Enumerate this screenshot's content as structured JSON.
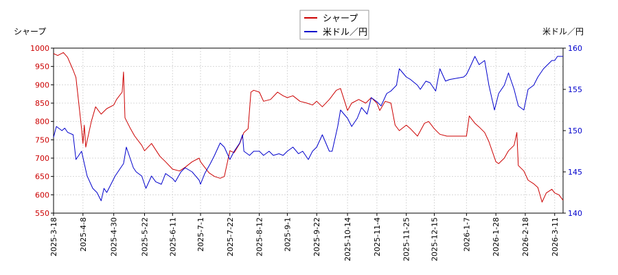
{
  "chart_data": {
    "type": "line",
    "title": "",
    "legend": {
      "placement": "top-center",
      "entries": [
        {
          "label": "シャープ",
          "color": "#cc0000"
        },
        {
          "label": "米ドル／円",
          "color": "#0000cc"
        }
      ]
    },
    "y_left": {
      "label": "シャープ",
      "range": [
        550,
        1000
      ],
      "ticks": [
        550,
        600,
        650,
        700,
        750,
        800,
        850,
        900,
        950,
        1000
      ],
      "color": "#cc0000"
    },
    "y_right": {
      "label": "米ドル／円",
      "range": [
        140,
        160
      ],
      "ticks": [
        140,
        145,
        150,
        155,
        160
      ],
      "color": "#0000cc"
    },
    "x_axis": {
      "range": [
        "2025-03-18",
        "2026-03-17"
      ],
      "ticks": [
        "2025-3-18",
        "2025-4-8",
        "2025-4-30",
        "2025-5-22",
        "2025-6-11",
        "2025-7-1",
        "2025-7-22",
        "2025-8-12",
        "2025-9-1",
        "2025-9-22",
        "2025-10-14",
        "2025-11-4",
        "2025-11-25",
        "2025-12-15",
        "2026-1-7",
        "2026-1-28",
        "2026-2-18",
        "2026-3-11"
      ]
    },
    "grid": true,
    "series": [
      {
        "name": "シャープ",
        "axis": "left",
        "color": "#cc0000",
        "points": [
          [
            "2025-03-18",
            985
          ],
          [
            "2025-03-21",
            980
          ],
          [
            "2025-03-25",
            988
          ],
          [
            "2025-03-28",
            975
          ],
          [
            "2025-04-01",
            940
          ],
          [
            "2025-04-03",
            920
          ],
          [
            "2025-04-07",
            780
          ],
          [
            "2025-04-08",
            740
          ],
          [
            "2025-04-09",
            790
          ],
          [
            "2025-04-10",
            730
          ],
          [
            "2025-04-14",
            800
          ],
          [
            "2025-04-17",
            840
          ],
          [
            "2025-04-21",
            820
          ],
          [
            "2025-04-25",
            835
          ],
          [
            "2025-04-30",
            845
          ],
          [
            "2025-05-02",
            860
          ],
          [
            "2025-05-06",
            880
          ],
          [
            "2025-05-07",
            935
          ],
          [
            "2025-05-08",
            810
          ],
          [
            "2025-05-12",
            780
          ],
          [
            "2025-05-15",
            760
          ],
          [
            "2025-05-20",
            735
          ],
          [
            "2025-05-22",
            720
          ],
          [
            "2025-05-27",
            740
          ],
          [
            "2025-06-02",
            705
          ],
          [
            "2025-06-06",
            690
          ],
          [
            "2025-06-11",
            670
          ],
          [
            "2025-06-16",
            665
          ],
          [
            "2025-06-20",
            675
          ],
          [
            "2025-06-25",
            690
          ],
          [
            "2025-06-30",
            700
          ],
          [
            "2025-07-01",
            690
          ],
          [
            "2025-07-07",
            660
          ],
          [
            "2025-07-11",
            650
          ],
          [
            "2025-07-15",
            645
          ],
          [
            "2025-07-18",
            650
          ],
          [
            "2025-07-22",
            720
          ],
          [
            "2025-07-25",
            715
          ],
          [
            "2025-07-29",
            740
          ],
          [
            "2025-08-01",
            770
          ],
          [
            "2025-08-04",
            780
          ],
          [
            "2025-08-06",
            880
          ],
          [
            "2025-08-08",
            885
          ],
          [
            "2025-08-12",
            880
          ],
          [
            "2025-08-15",
            855
          ],
          [
            "2025-08-20",
            860
          ],
          [
            "2025-08-25",
            880
          ],
          [
            "2025-08-29",
            870
          ],
          [
            "2025-09-01",
            865
          ],
          [
            "2025-09-05",
            870
          ],
          [
            "2025-09-10",
            855
          ],
          [
            "2025-09-15",
            850
          ],
          [
            "2025-09-19",
            845
          ],
          [
            "2025-09-22",
            855
          ],
          [
            "2025-09-26",
            840
          ],
          [
            "2025-10-01",
            860
          ],
          [
            "2025-10-06",
            885
          ],
          [
            "2025-10-09",
            890
          ],
          [
            "2025-10-14",
            830
          ],
          [
            "2025-10-17",
            850
          ],
          [
            "2025-10-22",
            860
          ],
          [
            "2025-10-27",
            850
          ],
          [
            "2025-10-31",
            865
          ],
          [
            "2025-11-04",
            850
          ],
          [
            "2025-11-06",
            830
          ],
          [
            "2025-11-10",
            855
          ],
          [
            "2025-11-14",
            850
          ],
          [
            "2025-11-17",
            790
          ],
          [
            "2025-11-20",
            775
          ],
          [
            "2025-11-25",
            790
          ],
          [
            "2025-11-28",
            780
          ],
          [
            "2025-12-03",
            760
          ],
          [
            "2025-12-08",
            795
          ],
          [
            "2025-12-11",
            800
          ],
          [
            "2025-12-15",
            780
          ],
          [
            "2025-12-19",
            765
          ],
          [
            "2025-12-24",
            760
          ],
          [
            "2026-01-05",
            760
          ],
          [
            "2026-01-07",
            760
          ],
          [
            "2026-01-09",
            815
          ],
          [
            "2026-01-13",
            795
          ],
          [
            "2026-01-16",
            785
          ],
          [
            "2026-01-20",
            770
          ],
          [
            "2026-01-23",
            745
          ],
          [
            "2026-01-28",
            690
          ],
          [
            "2026-01-30",
            685
          ],
          [
            "2026-02-03",
            700
          ],
          [
            "2026-02-06",
            720
          ],
          [
            "2026-02-10",
            735
          ],
          [
            "2026-02-12",
            770
          ],
          [
            "2026-02-13",
            680
          ],
          [
            "2026-02-17",
            665
          ],
          [
            "2026-02-20",
            640
          ],
          [
            "2026-02-24",
            630
          ],
          [
            "2026-02-27",
            620
          ],
          [
            "2026-03-02",
            580
          ],
          [
            "2026-03-05",
            605
          ],
          [
            "2026-03-09",
            615
          ],
          [
            "2026-03-11",
            605
          ],
          [
            "2026-03-14",
            600
          ],
          [
            "2026-03-17",
            585
          ]
        ]
      },
      {
        "name": "米ドル／円",
        "axis": "right",
        "color": "#0000cc",
        "points": [
          [
            "2025-03-18",
            149.2
          ],
          [
            "2025-03-20",
            150.5
          ],
          [
            "2025-03-24",
            150.0
          ],
          [
            "2025-03-26",
            150.3
          ],
          [
            "2025-03-28",
            149.8
          ],
          [
            "2025-04-01",
            149.5
          ],
          [
            "2025-04-03",
            146.5
          ],
          [
            "2025-04-07",
            147.5
          ],
          [
            "2025-04-09",
            146.0
          ],
          [
            "2025-04-11",
            144.5
          ],
          [
            "2025-04-15",
            143.0
          ],
          [
            "2025-04-18",
            142.5
          ],
          [
            "2025-04-21",
            141.5
          ],
          [
            "2025-04-23",
            143.0
          ],
          [
            "2025-04-25",
            142.5
          ],
          [
            "2025-04-28",
            143.5
          ],
          [
            "2025-05-01",
            144.5
          ],
          [
            "2025-05-05",
            145.5
          ],
          [
            "2025-05-07",
            146.0
          ],
          [
            "2025-05-09",
            148.0
          ],
          [
            "2025-05-12",
            146.5
          ],
          [
            "2025-05-14",
            145.5
          ],
          [
            "2025-05-16",
            145.0
          ],
          [
            "2025-05-20",
            144.5
          ],
          [
            "2025-05-23",
            143.0
          ],
          [
            "2025-05-27",
            144.5
          ],
          [
            "2025-05-30",
            143.8
          ],
          [
            "2025-06-03",
            143.5
          ],
          [
            "2025-06-06",
            144.8
          ],
          [
            "2025-06-11",
            144.2
          ],
          [
            "2025-06-13",
            143.8
          ],
          [
            "2025-06-17",
            145.0
          ],
          [
            "2025-06-20",
            145.5
          ],
          [
            "2025-06-25",
            145.0
          ],
          [
            "2025-06-30",
            144.0
          ],
          [
            "2025-07-01",
            143.5
          ],
          [
            "2025-07-04",
            144.8
          ],
          [
            "2025-07-08",
            146.0
          ],
          [
            "2025-07-11",
            147.0
          ],
          [
            "2025-07-15",
            148.5
          ],
          [
            "2025-07-18",
            148.0
          ],
          [
            "2025-07-22",
            146.5
          ],
          [
            "2025-07-25",
            147.5
          ],
          [
            "2025-07-29",
            148.5
          ],
          [
            "2025-07-31",
            149.5
          ],
          [
            "2025-08-01",
            147.5
          ],
          [
            "2025-08-05",
            147.0
          ],
          [
            "2025-08-08",
            147.5
          ],
          [
            "2025-08-12",
            147.5
          ],
          [
            "2025-08-15",
            147.0
          ],
          [
            "2025-08-19",
            147.5
          ],
          [
            "2025-08-22",
            147.0
          ],
          [
            "2025-08-26",
            147.2
          ],
          [
            "2025-08-29",
            147.0
          ],
          [
            "2025-09-01",
            147.5
          ],
          [
            "2025-09-05",
            148.0
          ],
          [
            "2025-09-09",
            147.2
          ],
          [
            "2025-09-12",
            147.5
          ],
          [
            "2025-09-16",
            146.5
          ],
          [
            "2025-09-19",
            147.5
          ],
          [
            "2025-09-22",
            148.0
          ],
          [
            "2025-09-26",
            149.5
          ],
          [
            "2025-10-01",
            147.5
          ],
          [
            "2025-10-03",
            147.5
          ],
          [
            "2025-10-07",
            150.5
          ],
          [
            "2025-10-09",
            152.5
          ],
          [
            "2025-10-14",
            151.5
          ],
          [
            "2025-10-17",
            150.5
          ],
          [
            "2025-10-21",
            151.5
          ],
          [
            "2025-10-24",
            152.8
          ],
          [
            "2025-10-28",
            152.0
          ],
          [
            "2025-10-31",
            154.0
          ],
          [
            "2025-11-04",
            153.5
          ],
          [
            "2025-11-07",
            153.0
          ],
          [
            "2025-11-11",
            154.5
          ],
          [
            "2025-11-14",
            154.8
          ],
          [
            "2025-11-18",
            155.5
          ],
          [
            "2025-11-20",
            157.5
          ],
          [
            "2025-11-25",
            156.5
          ],
          [
            "2025-11-28",
            156.2
          ],
          [
            "2025-12-03",
            155.5
          ],
          [
            "2025-12-05",
            155.0
          ],
          [
            "2025-12-09",
            156.0
          ],
          [
            "2025-12-12",
            155.8
          ],
          [
            "2025-12-16",
            154.8
          ],
          [
            "2025-12-19",
            157.5
          ],
          [
            "2025-12-23",
            156.0
          ],
          [
            "2025-12-26",
            156.2
          ],
          [
            "2026-01-05",
            156.5
          ],
          [
            "2026-01-07",
            156.8
          ],
          [
            "2026-01-09",
            157.5
          ],
          [
            "2026-01-13",
            159.0
          ],
          [
            "2026-01-16",
            158.0
          ],
          [
            "2026-01-20",
            158.5
          ],
          [
            "2026-01-23",
            155.5
          ],
          [
            "2026-01-27",
            152.5
          ],
          [
            "2026-01-30",
            154.5
          ],
          [
            "2026-02-03",
            155.5
          ],
          [
            "2026-02-06",
            157.0
          ],
          [
            "2026-02-10",
            155.0
          ],
          [
            "2026-02-13",
            153.0
          ],
          [
            "2026-02-17",
            152.5
          ],
          [
            "2026-02-20",
            155.0
          ],
          [
            "2026-02-24",
            155.5
          ],
          [
            "2026-02-27",
            156.5
          ],
          [
            "2026-03-03",
            157.5
          ],
          [
            "2026-03-06",
            158.0
          ],
          [
            "2026-03-09",
            158.5
          ],
          [
            "2026-03-11",
            158.5
          ],
          [
            "2026-03-13",
            159.0
          ],
          [
            "2026-03-17",
            159.0
          ]
        ]
      }
    ]
  }
}
